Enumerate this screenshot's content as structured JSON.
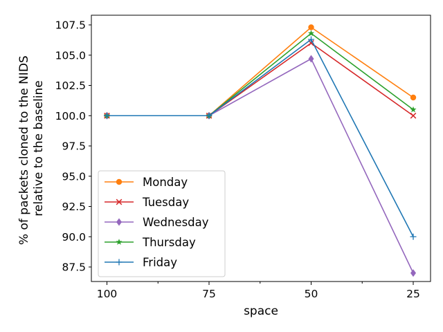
{
  "chart_data": {
    "type": "line",
    "categories": [
      "100",
      "75",
      "50",
      "25"
    ],
    "xlabel": "space",
    "ylabel_lines": [
      "% of packets cloned to the NIDS",
      "relative to the baseline"
    ],
    "ylim": [
      86.3,
      108.3
    ],
    "yticks": [
      87.5,
      90.0,
      92.5,
      95.0,
      97.5,
      100.0,
      102.5,
      105.0,
      107.5
    ],
    "ytick_labels": [
      "87.5",
      "90.0",
      "92.5",
      "95.0",
      "97.5",
      "100.0",
      "102.5",
      "105.0",
      "107.5"
    ],
    "grid": false,
    "legend_position": "lower-left",
    "series": [
      {
        "name": "Monday",
        "values": [
          100.0,
          100.0,
          107.3,
          101.5
        ],
        "color": "#ff7f0e",
        "marker": "circle"
      },
      {
        "name": "Tuesday",
        "values": [
          100.0,
          100.0,
          106.0,
          100.0
        ],
        "color": "#d62728",
        "marker": "x"
      },
      {
        "name": "Wednesday",
        "values": [
          100.0,
          100.0,
          104.7,
          87.0
        ],
        "color": "#9467bd",
        "marker": "diamond"
      },
      {
        "name": "Thursday",
        "values": [
          100.0,
          100.0,
          106.8,
          100.5
        ],
        "color": "#2ca02c",
        "marker": "star"
      },
      {
        "name": "Friday",
        "values": [
          100.0,
          100.0,
          106.3,
          90.0
        ],
        "color": "#1f77b4",
        "marker": "plus"
      }
    ]
  }
}
